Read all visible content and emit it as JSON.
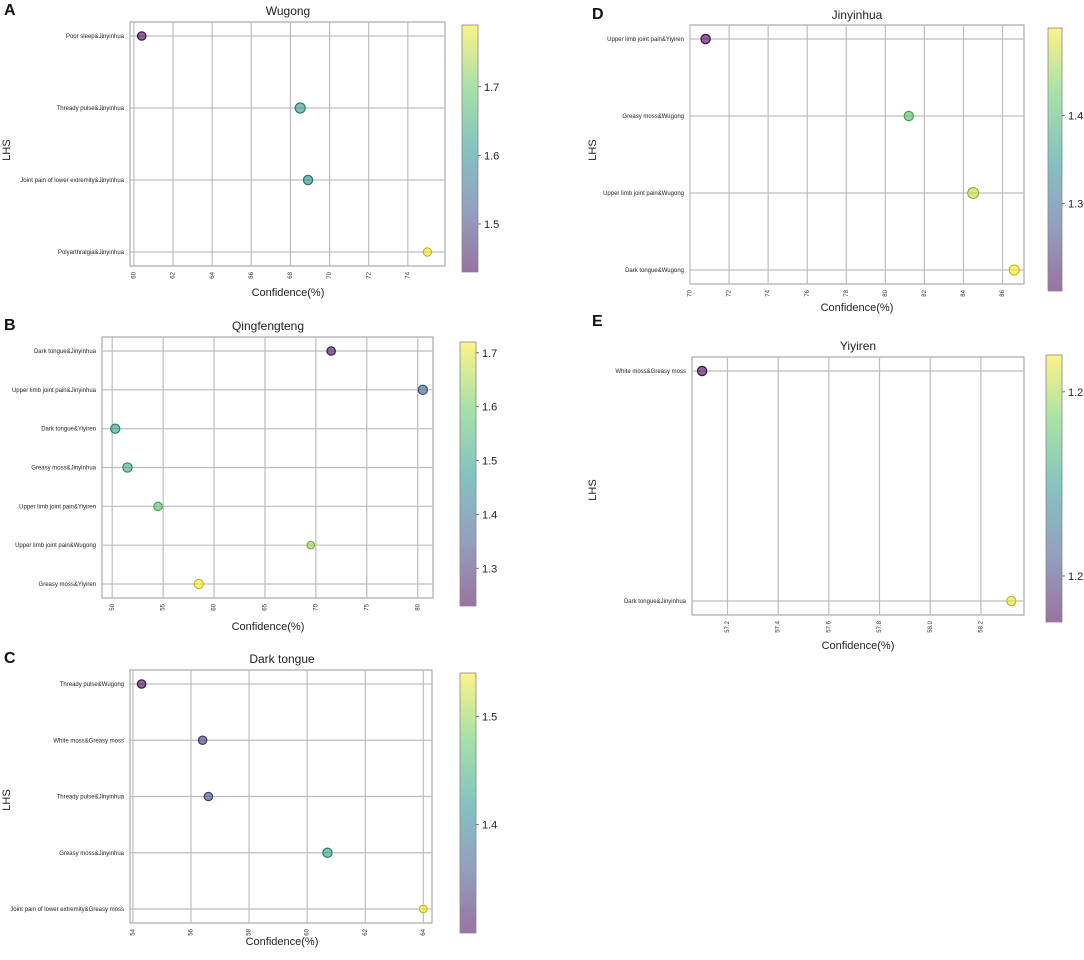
{
  "colormap": [
    "#440154",
    "#3b528b",
    "#21918c",
    "#5ec962",
    "#fde725"
  ],
  "chart_data": [
    {
      "panel_label": "A",
      "type": "scatter",
      "title": "Wugong",
      "xlabel": "Confidence(%)",
      "ylabel": "LHS",
      "xlim": [
        59.8,
        75.9
      ],
      "xticks": [
        "60",
        "62",
        "64",
        "66",
        "68",
        "70",
        "72",
        "74"
      ],
      "categories": [
        "Poor sleep&Jinyinhua",
        "Thready pulse&Jinyinhua",
        "Joint pain of lower extremity&Jinyinhua",
        "Polyarthralgia&Jinyinhua"
      ],
      "points": [
        {
          "label": "Poor sleep&Jinyinhua",
          "x": 60.4,
          "color_value": 1.43,
          "size": 1.0
        },
        {
          "label": "Thready pulse&Jinyinhua",
          "x": 68.5,
          "color_value": 1.62,
          "size": 1.2
        },
        {
          "label": "Joint pain of lower extremity&Jinyinhua",
          "x": 68.9,
          "color_value": 1.6,
          "size": 1.1
        },
        {
          "label": "Polyarthralgia&Jinyinhua",
          "x": 75.0,
          "color_value": 1.78,
          "size": 1.0
        }
      ],
      "colorbar": {
        "ticks": [
          "1.5",
          "1.6",
          "1.7"
        ],
        "tick_values": [
          1.5,
          1.6,
          1.7
        ],
        "range": [
          1.43,
          1.79
        ]
      }
    },
    {
      "panel_label": "B",
      "type": "scatter",
      "title": "Qingfengteng",
      "xlabel": "Confidence(%)",
      "ylabel": "",
      "xlim": [
        49.0,
        81.5
      ],
      "xticks": [
        "50",
        "55",
        "60",
        "65",
        "70",
        "75",
        "80"
      ],
      "categories": [
        "Dark tongue&Jinyinhua",
        "Upper limb joint pain&Jinyinhua",
        "Dark tongue&Yiyiren",
        "Greasy moss&Jinyinhua",
        "Upper limb joint pain&Yiyiren",
        "Upper limb joint pain&Wugong",
        "Greasy moss&Yiyiren"
      ],
      "points": [
        {
          "label": "Dark tongue&Jinyinhua",
          "x": 71.5,
          "color_value": 1.25,
          "size": 1.0
        },
        {
          "label": "Upper limb joint pain&Jinyinhua",
          "x": 80.5,
          "color_value": 1.38,
          "size": 1.1
        },
        {
          "label": "Dark tongue&Yiyiren",
          "x": 50.3,
          "color_value": 1.5,
          "size": 1.1
        },
        {
          "label": "Greasy moss&Jinyinhua",
          "x": 51.5,
          "color_value": 1.53,
          "size": 1.1
        },
        {
          "label": "Upper limb joint pain&Yiyiren",
          "x": 54.5,
          "color_value": 1.58,
          "size": 1.0
        },
        {
          "label": "Upper limb joint pain&Wugong",
          "x": 69.5,
          "color_value": 1.64,
          "size": 0.9
        },
        {
          "label": "Greasy moss&Yiyiren",
          "x": 58.5,
          "color_value": 1.72,
          "size": 1.1
        }
      ],
      "colorbar": {
        "ticks": [
          "1.3",
          "1.4",
          "1.5",
          "1.6",
          "1.7"
        ],
        "tick_values": [
          1.3,
          1.4,
          1.5,
          1.6,
          1.7
        ],
        "range": [
          1.23,
          1.72
        ]
      }
    },
    {
      "panel_label": "C",
      "type": "scatter",
      "title": "Dark tongue",
      "xlabel": "Confidence(%)",
      "ylabel": "LHS",
      "xlim": [
        53.9,
        64.3
      ],
      "xticks": [
        "54",
        "56",
        "58",
        "60",
        "62",
        "64"
      ],
      "categories": [
        "Thready pulse&Wugong",
        "White moss&Greasy moss",
        "Thready pulse&Jinyinhua",
        "Greasy moss&Jinyinhua",
        "Joint pain of lower extremity&Greasy moss"
      ],
      "points": [
        {
          "label": "Thready pulse&Wugong",
          "x": 54.3,
          "color_value": 1.3,
          "size": 1.0
        },
        {
          "label": "White moss&Greasy moss",
          "x": 56.4,
          "color_value": 1.34,
          "size": 1.0
        },
        {
          "label": "Thready pulse&Jinyinhua",
          "x": 56.6,
          "color_value": 1.35,
          "size": 1.0
        },
        {
          "label": "Greasy moss&Jinyinhua",
          "x": 60.7,
          "color_value": 1.43,
          "size": 1.1
        },
        {
          "label": "Joint pain of lower extremity&Greasy moss",
          "x": 64.0,
          "color_value": 1.54,
          "size": 0.9
        }
      ],
      "colorbar": {
        "ticks": [
          "1.4",
          "1.5"
        ],
        "tick_values": [
          1.4,
          1.5
        ],
        "range": [
          1.3,
          1.54
        ]
      }
    },
    {
      "panel_label": "D",
      "type": "scatter",
      "title": "Jinyinhua",
      "xlabel": "Confidence(%)",
      "ylabel": "LHS",
      "xlim": [
        70.0,
        87.1
      ],
      "xticks": [
        "70",
        "72",
        "74",
        "76",
        "78",
        "80",
        "82",
        "84",
        "86"
      ],
      "categories": [
        "Upper limb joint pain&Yiyiren",
        "Greasy moss&Wugong",
        "Upper limb joint pain&Wugong",
        "Dark tongue&Wugong"
      ],
      "points": [
        {
          "label": "Upper limb joint pain&Yiyiren",
          "x": 70.8,
          "color_value": 1.2,
          "size": 1.1
        },
        {
          "label": "Greasy moss&Wugong",
          "x": 81.2,
          "color_value": 1.41,
          "size": 1.1
        },
        {
          "label": "Upper limb joint pain&Wugong",
          "x": 84.5,
          "color_value": 1.47,
          "size": 1.3
        },
        {
          "label": "Dark tongue&Wugong",
          "x": 86.6,
          "color_value": 1.5,
          "size": 1.2
        }
      ],
      "colorbar": {
        "ticks": [
          "1.3",
          "1.4"
        ],
        "tick_values": [
          1.3,
          1.4
        ],
        "range": [
          1.2,
          1.5
        ]
      }
    },
    {
      "panel_label": "E",
      "type": "scatter",
      "title": "Yiyiren",
      "xlabel": "Confidence(%)",
      "ylabel": "LHS",
      "xlim": [
        57.06,
        58.37
      ],
      "xticks": [
        "57.2",
        "57.4",
        "57.6",
        "57.8",
        "58.0",
        "58.2"
      ],
      "categories": [
        "White moss&Greasy moss",
        "Dark tongue&Jinyinhua"
      ],
      "points": [
        {
          "label": "White moss&Greasy moss",
          "x": 57.1,
          "color_value": 1.215,
          "size": 1.1
        },
        {
          "label": "Dark tongue&Jinyinhua",
          "x": 58.32,
          "color_value": 1.243,
          "size": 1.1
        }
      ],
      "colorbar": {
        "ticks": [
          "1.22",
          "1.24"
        ],
        "tick_values": [
          1.22,
          1.24
        ],
        "range": [
          1.215,
          1.244
        ]
      }
    }
  ]
}
